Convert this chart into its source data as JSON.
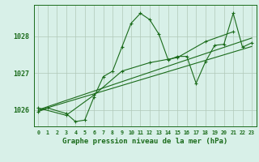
{
  "title": "Graphe pression niveau de la mer (hPa)",
  "background_color": "#d8f0e8",
  "grid_color": "#b0c8b8",
  "line_color": "#1a6b1a",
  "text_color": "#1a6b1a",
  "xlim": [
    -0.5,
    23.5
  ],
  "ylim": [
    1025.55,
    1028.85
  ],
  "yticks": [
    1026,
    1027,
    1028
  ],
  "xticks": [
    0,
    1,
    2,
    3,
    4,
    5,
    6,
    7,
    8,
    9,
    10,
    11,
    12,
    13,
    14,
    15,
    16,
    17,
    18,
    19,
    20,
    21,
    22,
    23
  ],
  "series": [
    {
      "x": [
        0,
        1,
        3,
        4,
        5,
        6,
        7,
        8,
        9,
        10,
        11,
        12,
        13,
        14,
        15,
        16,
        17,
        18,
        19,
        20,
        21,
        22,
        23
      ],
      "y": [
        1025.95,
        1026.05,
        1025.9,
        1025.68,
        1025.72,
        1026.35,
        1026.9,
        1027.05,
        1027.7,
        1028.35,
        1028.62,
        1028.45,
        1028.05,
        1027.35,
        1027.45,
        1027.45,
        1026.72,
        1027.3,
        1027.75,
        1027.78,
        1028.62,
        1027.7,
        1027.82
      ],
      "marker": "+"
    },
    {
      "x": [
        0,
        3,
        6,
        9,
        12,
        15,
        18,
        21
      ],
      "y": [
        1026.05,
        1025.85,
        1026.4,
        1027.05,
        1027.28,
        1027.42,
        1027.85,
        1028.12
      ],
      "marker": "+"
    },
    {
      "x": [
        0,
        23
      ],
      "y": [
        1026.0,
        1027.95
      ],
      "marker": null
    },
    {
      "x": [
        0,
        23
      ],
      "y": [
        1025.98,
        1027.72
      ],
      "marker": null
    }
  ]
}
